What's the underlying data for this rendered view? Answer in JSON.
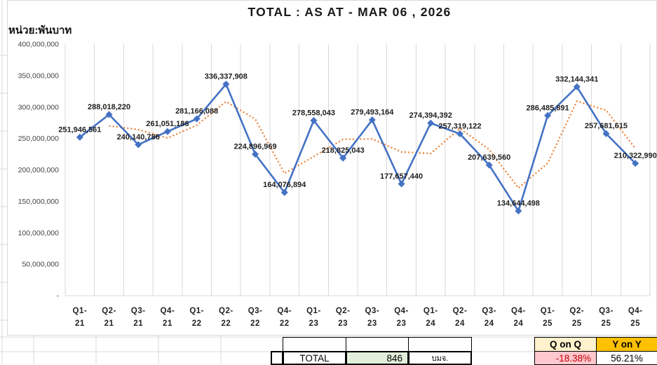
{
  "title": "TOTAL : AS AT - MAR 06 , 2026",
  "unit_label": "หน่วย:พันบาท",
  "chart_data": {
    "type": "line",
    "title": "TOTAL : AS AT - MAR 06 , 2026",
    "ylabel": "หน่วย:พันบาท",
    "categories": [
      "Q1-21",
      "Q2-21",
      "Q3-21",
      "Q4-21",
      "Q1-22",
      "Q2-22",
      "Q3-22",
      "Q4-22",
      "Q1-23",
      "Q2-23",
      "Q3-23",
      "Q4-23",
      "Q1-24",
      "Q2-24",
      "Q3-24",
      "Q4-24",
      "Q1-25",
      "Q2-25",
      "Q3-25",
      "Q4-25"
    ],
    "series": [
      {
        "name": "Total",
        "type": "line-with-diamond-markers",
        "color": "#4472C4",
        "values": [
          251946561,
          288018220,
          240140786,
          261051186,
          281166088,
          336337908,
          224896969,
          164076894,
          278558043,
          218825043,
          279493164,
          177657440,
          274394392,
          257319122,
          207639560,
          134644498,
          286485891,
          332144341,
          257681615,
          210322990
        ]
      },
      {
        "name": "2-period moving average trendline",
        "type": "dotted-line",
        "color": "#ED7D31",
        "values": [
          null,
          269982391,
          264079503,
          250595986,
          271108637,
          308751998,
          280617439,
          194486932,
          221317469,
          248691543,
          249159104,
          228575302,
          226025916,
          265856757,
          232479341,
          171142029,
          210565195,
          309315116,
          294912978,
          234002303
        ]
      }
    ],
    "data_labels": [
      "251,946,561",
      "288,018,220",
      "240,140,786",
      "261,051,186",
      "281,166,088",
      "336,337,908",
      "224,896,969",
      "164,076,894",
      "278,558,043",
      "218,825,043",
      "279,493,164",
      "177,657,440",
      "274,394,392",
      "257,319,122",
      "207,639,560",
      "134,644,498",
      "286,485,891",
      "332,144,341",
      "257,681,615",
      "210,322,990"
    ],
    "ylim": [
      0,
      400000000
    ],
    "ytick_labels": [
      "400,000,000",
      "350,000,000",
      "300,000,000",
      "250,000,000",
      "200,000,000",
      "150,000,000",
      "100,000,000",
      "50,000,000",
      "-"
    ],
    "grid": "vertical-only",
    "legend": "none",
    "grid_color": "#D9D9D9"
  },
  "footer": {
    "total_label": "TOTAL",
    "total_value": "846",
    "unit_abbr": "บมจ.",
    "qonq": {
      "label": "Q on Q",
      "value": "-18.38%"
    },
    "yony": {
      "label": "Y on Y",
      "value": "56.21%"
    },
    "colors": {
      "total_value_bg": "#E2EFDA",
      "qonq_header_bg": "#FFF2CC",
      "yony_header_bg": "#FFC000",
      "qonq_value_bg": "#FFC7CE",
      "qonq_value_text": "#C00000"
    }
  }
}
